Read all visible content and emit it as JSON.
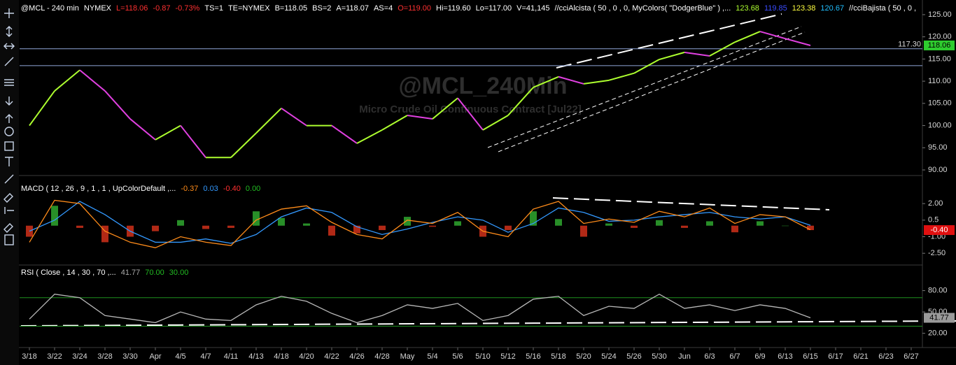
{
  "chart_data": [
    {
      "type": "line",
      "header": [
        {
          "text": "@MCL - 240 min",
          "color": "#ffffff"
        },
        {
          "text": "NYMEX",
          "color": "#ffffff"
        },
        {
          "text": "L=118.06",
          "color": "#ff3030"
        },
        {
          "text": "-0.87",
          "color": "#ff3030"
        },
        {
          "text": "-0.73%",
          "color": "#ff3030"
        },
        {
          "text": "TS=1",
          "color": "#ffffff"
        },
        {
          "text": "TE=NYMEX",
          "color": "#ffffff"
        },
        {
          "text": "B=118.05",
          "color": "#ffffff"
        },
        {
          "text": "BS=2",
          "color": "#ffffff"
        },
        {
          "text": "A=118.07",
          "color": "#ffffff"
        },
        {
          "text": "AS=4",
          "color": "#ffffff"
        },
        {
          "text": "O=119.00",
          "color": "#ff3030"
        },
        {
          "text": "Hi=119.60",
          "color": "#ffffff"
        },
        {
          "text": "Lo=117.00",
          "color": "#ffffff"
        },
        {
          "text": "V=41,145",
          "color": "#ffffff"
        },
        {
          "text": "//cciAlcista ( 50 , 0 , 0, MyColors( \"DodgerBlue\" ) ,...",
          "color": "#ffffff"
        },
        {
          "text": "123.68",
          "color": "#adff2f"
        },
        {
          "text": "119.85",
          "color": "#3a4cff"
        },
        {
          "text": "123.38",
          "color": "#ffff40"
        },
        {
          "text": "120.67",
          "color": "#20bfff"
        },
        {
          "text": "//cciBajista ( 50 , 0 ,",
          "color": "#ffffff"
        }
      ],
      "watermark": "@MCL_240Min",
      "subtitle": "Micro Crude Oil Continuous Contract [Jul22]",
      "categories": [
        "3/18",
        "3/22",
        "3/24",
        "3/28",
        "3/30",
        "Apr",
        "4/5",
        "4/7",
        "4/11",
        "4/13",
        "4/18",
        "4/20",
        "4/22",
        "4/26",
        "4/28",
        "May",
        "5/4",
        "5/6",
        "5/10",
        "5/12",
        "5/16",
        "5/18",
        "5/20",
        "5/24",
        "5/26",
        "5/30",
        "Jun",
        "6/3",
        "6/7",
        "6/9",
        "6/13",
        "6/15",
        "6/17",
        "6/21",
        "6/23",
        "6/27"
      ],
      "series": [
        {
          "color": "#adff2f",
          "down_color": "#e040e0",
          "values": [
            100,
            107.8,
            112.5,
            107.8,
            101.5,
            96.8,
            100,
            92.8,
            92.8,
            98.3,
            103.9,
            100,
            100,
            96,
            99,
            102.3,
            101.5,
            106.2,
            99,
            102.3,
            108.6,
            111,
            109.4,
            110.2,
            111.8,
            114.9,
            116.5,
            115.7,
            118.8,
            121.2,
            119.6,
            118.06,
            null,
            null,
            null,
            null
          ]
        }
      ],
      "ylim": [
        88.9,
        128.3
      ],
      "yticks": [
        {
          "value": 125,
          "label": "125.00"
        },
        {
          "value": 120,
          "label": "120.00"
        },
        {
          "value": 115,
          "label": "115.00"
        },
        {
          "value": 110,
          "label": "110.00"
        },
        {
          "value": 105,
          "label": "105.00"
        },
        {
          "value": 100,
          "label": "100.00"
        },
        {
          "value": 95,
          "label": "95.00"
        },
        {
          "value": 90,
          "label": "90.00"
        }
      ],
      "hlines": [
        {
          "value": 117.3,
          "label": "117.30"
        },
        {
          "value": 113.51
        }
      ],
      "hline_color": "#8fa6d8",
      "hline_labels": true,
      "last_label": 118.06,
      "last_color": "#2ecc2e",
      "last_text_color": "#000000"
    },
    {
      "type": "line",
      "header": [
        {
          "text": "MACD ( 12 , 26 , 9 , 1 , 1 , UpColorDefault ,...",
          "color": "#ffffff"
        },
        {
          "text": "-0.37",
          "color": "#ff8c1a"
        },
        {
          "text": "0.03",
          "color": "#3399ff"
        },
        {
          "text": "-0.40",
          "color": "#ff3030"
        },
        {
          "text": "0.00",
          "color": "#22bb22"
        }
      ],
      "series": [
        {
          "style": "histogram",
          "color": "#2fa82f",
          "negative_color": "#d0301a",
          "values": [
            -1.0,
            1.8,
            -0.2,
            -1.5,
            -1.0,
            -0.5,
            0.5,
            -0.3,
            -0.2,
            1.3,
            0.7,
            0.2,
            -0.9,
            -0.7,
            -0.4,
            0.8,
            -0.1,
            0.4,
            -1.0,
            -0.4,
            1.3,
            0.6,
            -1.0,
            0.2,
            -0.2,
            0.5,
            -0.2,
            0.4,
            -0.6,
            0.4,
            0.0,
            -0.4,
            null,
            null,
            null,
            null
          ]
        },
        {
          "color": "#3399ff",
          "values": [
            -0.5,
            0.5,
            2.2,
            1.0,
            -0.5,
            -1.5,
            -1.5,
            -1.2,
            -1.6,
            -0.8,
            0.8,
            1.6,
            1.2,
            -0.1,
            -0.8,
            -0.3,
            0.3,
            0.8,
            0.5,
            -0.6,
            0.2,
            1.6,
            1.2,
            0.4,
            0.5,
            0.8,
            1.0,
            1.2,
            0.8,
            0.6,
            0.8,
            0.03,
            null,
            null,
            null,
            null
          ]
        },
        {
          "color": "#ff8c1a",
          "values": [
            -1.5,
            2.3,
            2.0,
            -0.5,
            -1.5,
            -2.0,
            -1.0,
            -1.5,
            -1.8,
            0.5,
            1.5,
            1.8,
            0.3,
            -0.8,
            -1.2,
            0.5,
            0.2,
            1.2,
            -0.5,
            -1.0,
            1.5,
            2.2,
            0.2,
            0.6,
            0.3,
            1.3,
            0.8,
            1.6,
            0.2,
            1.0,
            0.8,
            -0.37,
            null,
            null,
            null,
            null
          ]
        }
      ],
      "ylim": [
        -3.5,
        4.1
      ],
      "yticks": [
        {
          "value": 2,
          "label": "2.00"
        },
        0.5,
        {
          "value": -1,
          "label": "-1.00"
        },
        {
          "value": -2.5,
          "label": "-2.50"
        }
      ],
      "last_label": {
        "value": -0.4,
        "label": "-0.40"
      },
      "last_color": "#e01010",
      "last_text_color": "#ffffff"
    },
    {
      "type": "line",
      "header": [
        {
          "text": "RSI ( Close , 14 , 30 , 70 ,...",
          "color": "#ffffff"
        },
        {
          "text": "41.77",
          "color": "#aaaaaa"
        },
        {
          "text": "70.00",
          "color": "#22bb22"
        },
        {
          "text": "30.00",
          "color": "#22bb22"
        }
      ],
      "series": [
        {
          "color": "#b8b8b8",
          "values": [
            40,
            75,
            70,
            45,
            40,
            35,
            50,
            40,
            38,
            60,
            72,
            65,
            48,
            35,
            45,
            60,
            55,
            62,
            38,
            45,
            68,
            72,
            45,
            58,
            55,
            75,
            55,
            60,
            52,
            60,
            55,
            41.77,
            null,
            null,
            null,
            null
          ]
        }
      ],
      "ylim": [
        2,
        113
      ],
      "yticks": [
        {
          "value": 80,
          "label": "80.00"
        },
        {
          "value": 50,
          "label": "50.00"
        },
        {
          "value": 20,
          "label": "20.00"
        }
      ],
      "hlines": [
        70,
        30
      ],
      "hline_color": "#1f8f1f",
      "hline_labels": false,
      "last_label": 41.77,
      "last_color": "#9a9a9a",
      "last_text_color": "#000000"
    }
  ]
}
